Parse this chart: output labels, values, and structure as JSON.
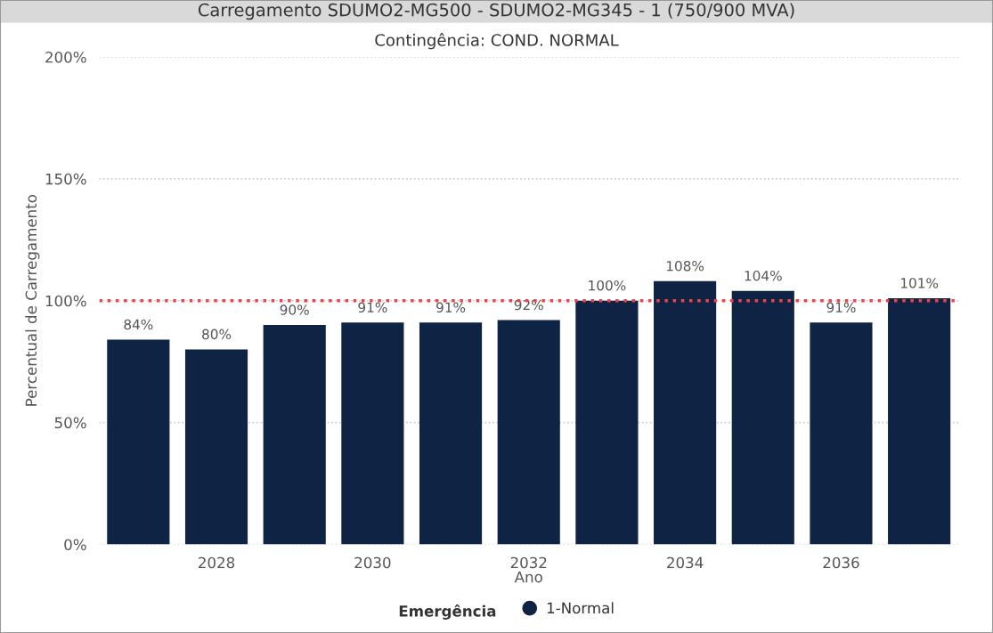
{
  "chart_data": {
    "type": "bar",
    "title": "Carregamento SDUMO2-MG500 - SDUMO2-MG345 - 1 (750/900 MVA)",
    "subtitle": "Contingência: COND. NORMAL",
    "xlabel": "Ano",
    "ylabel": "Percentual de Carregamento",
    "legend_title": "Emergência",
    "x": [
      2027,
      2028,
      2029,
      2030,
      2031,
      2032,
      2033,
      2034,
      2035,
      2036,
      2037
    ],
    "series": [
      {
        "name": "1-Normal",
        "color": "#0f2344",
        "values": [
          84,
          80,
          90,
          91,
          91,
          92,
          100,
          108,
          104,
          91,
          101
        ],
        "value_labels": [
          "84%",
          "80%",
          "90%",
          "91%",
          "91%",
          "92%",
          "100%",
          "108%",
          "104%",
          "91%",
          "101%"
        ]
      }
    ],
    "xlim": [
      2026.5,
      2037.5
    ],
    "xticks": [
      2028,
      2030,
      2032,
      2034,
      2036
    ],
    "ylim": [
      0,
      200
    ],
    "yticks": [
      {
        "value": 0,
        "label": "0%"
      },
      {
        "value": 50,
        "label": "50%"
      },
      {
        "value": 100,
        "label": "100%"
      },
      {
        "value": 150,
        "label": "150%"
      },
      {
        "value": 200,
        "label": "200%"
      }
    ],
    "ref_lines": [
      {
        "axis": "y",
        "value": 100,
        "label": null,
        "color": "#f0424a",
        "line_style": "dotted"
      }
    ],
    "grid": "y",
    "legend": "bottom"
  }
}
